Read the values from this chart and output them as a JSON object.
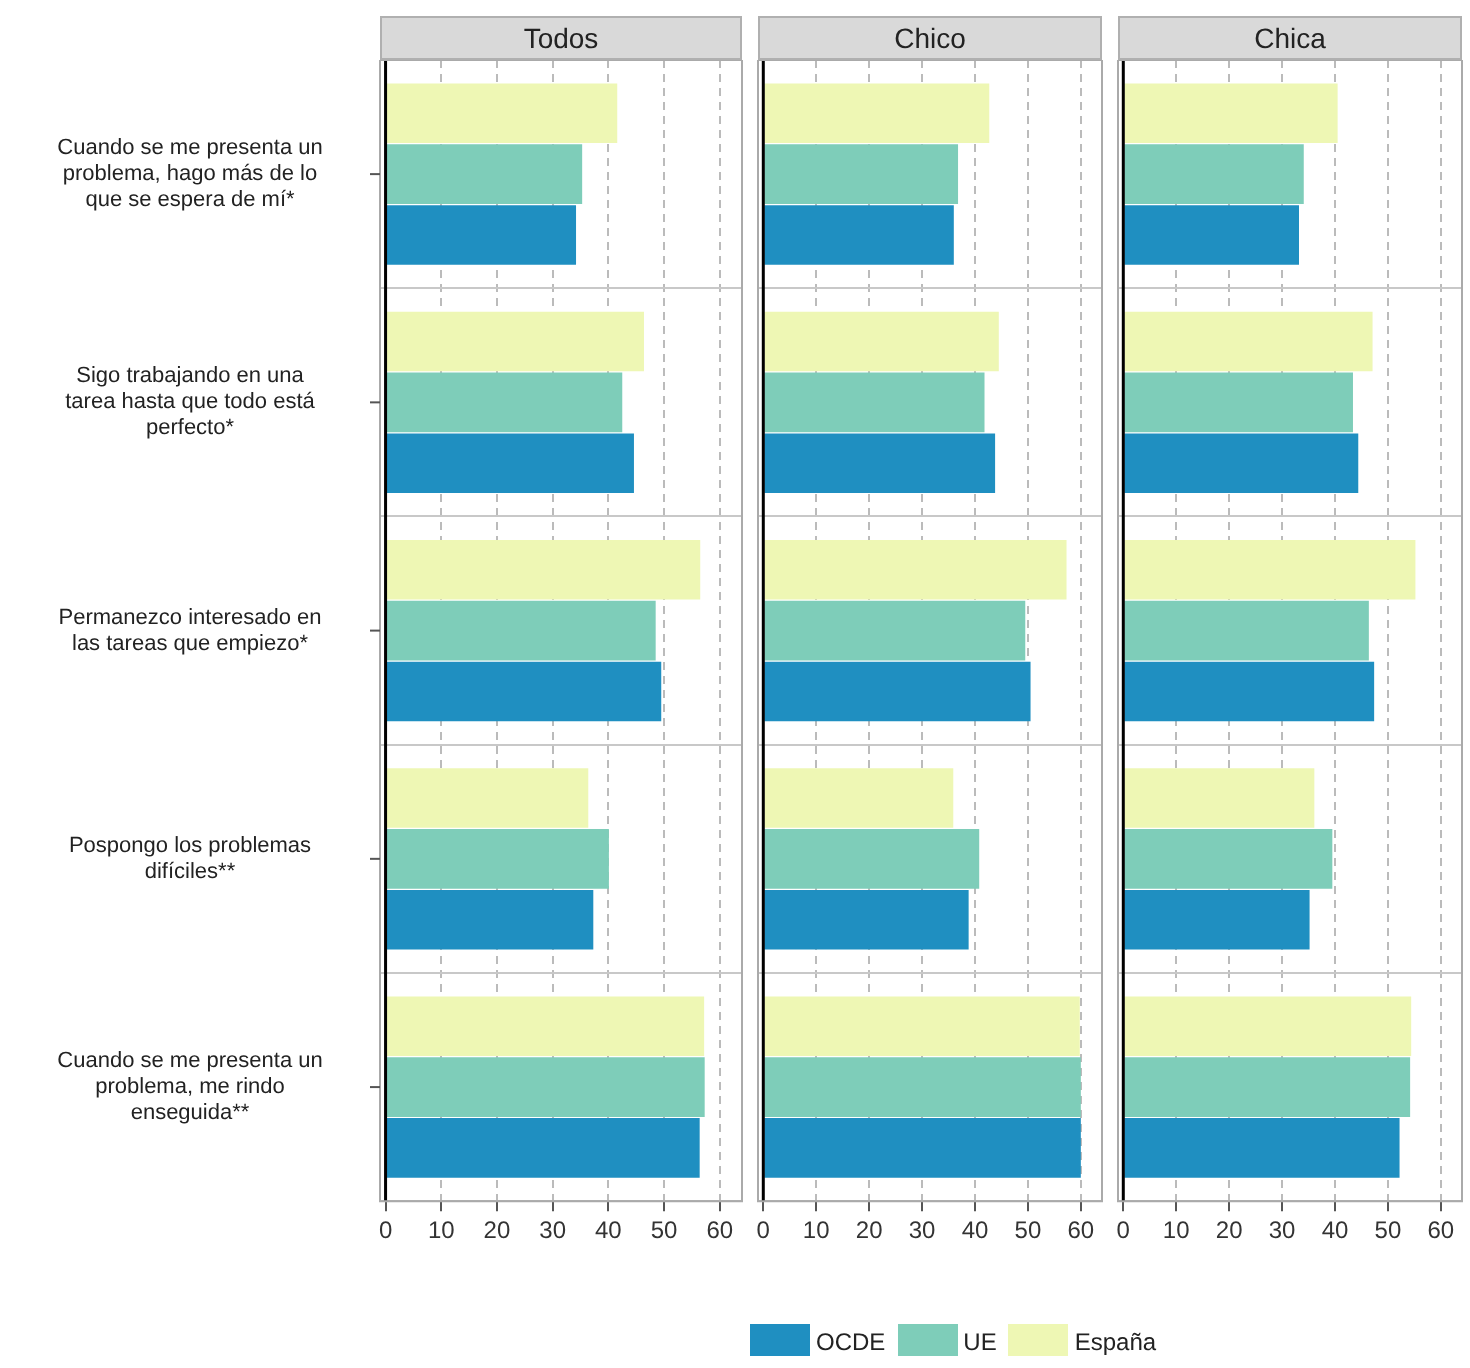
{
  "chart_data": [
    {
      "type": "bar",
      "orientation": "horizontal",
      "title": "Todos",
      "categories": [
        "Cuando se me presenta un problema, hago más de lo que se espera de mí*",
        "Sigo trabajando en una tarea hasta que todo está perfecto*",
        "Permanezco interesado en las tareas que empiezo*",
        "Pospongo los problemas difíciles**",
        "Cuando se me presenta un problema, me rindo enseguida**"
      ],
      "series": [
        {
          "name": "OCDE",
          "color": "#1f8fc1",
          "values": [
            34.2,
            44.6,
            49.5,
            37.3,
            56.4
          ]
        },
        {
          "name": "UE",
          "color": "#7ecdb9",
          "values": [
            35.3,
            42.5,
            48.5,
            40.1,
            57.3
          ]
        },
        {
          "name": "España",
          "color": "#eef7b4",
          "values": [
            41.6,
            46.4,
            56.5,
            36.4,
            57.2
          ]
        }
      ],
      "xlim": [
        -1,
        64
      ],
      "xticks": [
        0,
        10,
        20,
        30,
        40,
        50,
        60
      ],
      "grid": true,
      "legend": "bottom"
    },
    {
      "type": "bar",
      "orientation": "horizontal",
      "title": "Chico",
      "categories": [
        null,
        null,
        null,
        null,
        null
      ],
      "series": [
        {
          "color": "#1f8fc1",
          "values": [
            36.0,
            43.8,
            50.5,
            38.8,
            60.0
          ]
        },
        {
          "color": "#7ecdb9",
          "values": [
            36.8,
            41.8,
            49.5,
            40.8,
            60.0
          ]
        },
        {
          "color": "#eef7b4",
          "values": [
            42.7,
            44.5,
            57.3,
            35.9,
            59.8
          ]
        }
      ],
      "xlim": [
        -1,
        64
      ],
      "xticks": [
        0,
        10,
        20,
        30,
        40,
        50,
        60
      ],
      "grid": true,
      "tick_labels": "x"
    },
    {
      "type": "bar",
      "orientation": "horizontal",
      "title": "Chica",
      "categories": [
        null,
        null,
        null,
        null,
        null
      ],
      "series": [
        {
          "color": "#1f8fc1",
          "values": [
            33.2,
            44.4,
            47.4,
            35.2,
            52.2
          ]
        },
        {
          "color": "#7ecdb9",
          "values": [
            34.1,
            43.4,
            46.4,
            39.5,
            54.2
          ]
        },
        {
          "color": "#eef7b4",
          "values": [
            40.5,
            47.1,
            55.2,
            36.1,
            54.4
          ]
        }
      ],
      "xlim": [
        -1,
        64
      ],
      "xticks": [
        0,
        10,
        20,
        30,
        40,
        50,
        60
      ],
      "grid": true,
      "tick_labels": "x"
    }
  ]
}
